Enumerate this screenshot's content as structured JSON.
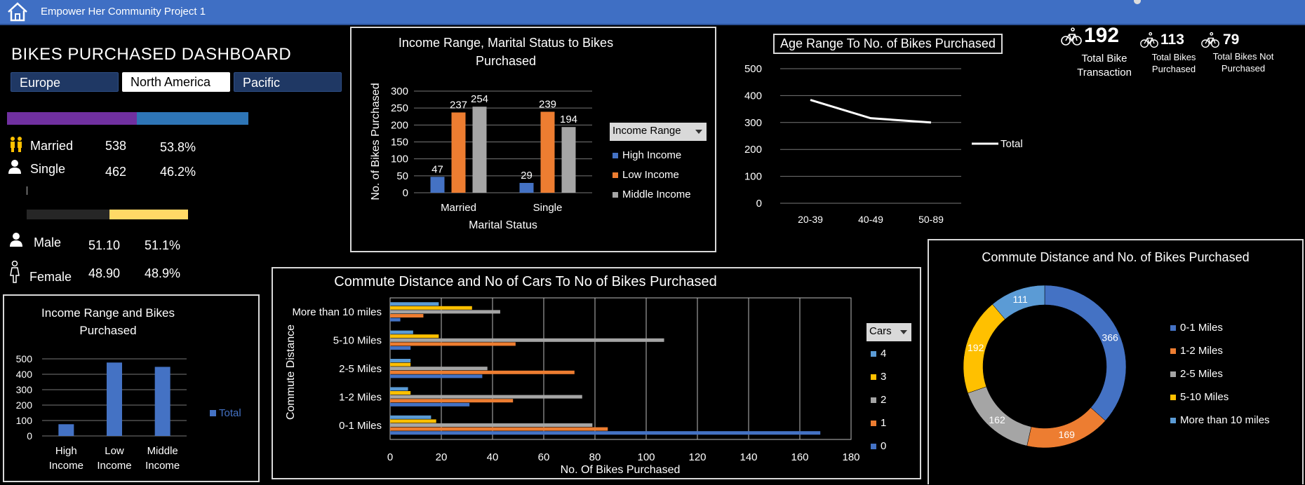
{
  "app": {
    "title": "Empower Her Community Project 1"
  },
  "dashboard": {
    "title": "BIKES PURCHASED DASHBOARD",
    "regions": [
      {
        "label": "Europe",
        "selected": false
      },
      {
        "label": "North America",
        "selected": true
      },
      {
        "label": "Pacific",
        "selected": false
      }
    ]
  },
  "marital": {
    "married_label": "Married",
    "married_count": "538",
    "married_pct": "53.8%",
    "single_label": "Single",
    "single_count": "462",
    "single_pct": "46.2%",
    "married_share": 0.538,
    "colors": {
      "married": "#7030a0",
      "single": "#2e75b6"
    }
  },
  "gender": {
    "male_label": "Male",
    "male_value": "51.10",
    "male_pct": "51.1%",
    "female_label": "Female",
    "female_value": "48.90",
    "female_pct": "48.9%",
    "male_share": 0.511,
    "colors": {
      "male": "#262626",
      "female": "#ffd966"
    }
  },
  "kpis": {
    "total_transactions": "192",
    "total_transactions_label_1": "Total Bike",
    "total_transactions_label_2": "Transaction",
    "total_purchased": "113",
    "total_purchased_label_1": "Total Bikes",
    "total_purchased_label_2": "Purchased",
    "total_not_purchased": "79",
    "total_not_purchased_label_1": "Total Bikes Not",
    "total_not_purchased_label_2": "Purchased"
  },
  "filters": {
    "income_range": "Income Range",
    "cars": "Cars"
  },
  "chart_data": [
    {
      "id": "income_marital",
      "type": "bar",
      "title": "Income Range, Marital Status to Bikes Purchased",
      "title_line1": "Income Range, Marital Status to Bikes",
      "title_line2": "Purchased",
      "xlabel": "Marital Status",
      "ylabel": "No. of Bikes Purchased",
      "categories": [
        "Married",
        "Single"
      ],
      "ylim": [
        0,
        300
      ],
      "yticks": [
        0,
        50,
        100,
        150,
        200,
        250,
        300
      ],
      "series": [
        {
          "name": "High Income",
          "values": [
            47,
            29
          ],
          "color": "#4472c4"
        },
        {
          "name": "Low Income",
          "values": [
            237,
            239
          ],
          "color": "#ed7d31"
        },
        {
          "name": "Middle Income",
          "values": [
            254,
            194
          ],
          "color": "#a5a5a5"
        }
      ],
      "grid": true,
      "legend": "right"
    },
    {
      "id": "age_range",
      "type": "line",
      "title": "Age Range To No. of Bikes Purchased",
      "categories": [
        "20-39",
        "40-49",
        "50-89"
      ],
      "ylim": [
        0,
        500
      ],
      "yticks": [
        0,
        100,
        200,
        300,
        400,
        500
      ],
      "series": [
        {
          "name": "Total",
          "values": [
            384,
            316,
            300
          ],
          "color": "#ffffff"
        }
      ],
      "grid": true,
      "legend": "right"
    },
    {
      "id": "income_bikes",
      "type": "bar",
      "title": "Income Range and Bikes Purchased",
      "title_line1": "Income Range and Bikes",
      "title_line2": "Purchased",
      "categories": [
        "High Income",
        "Low Income",
        "Middle Income"
      ],
      "category_lines": [
        [
          "High",
          "Income"
        ],
        [
          "Low",
          "Income"
        ],
        [
          "Middle",
          "Income"
        ]
      ],
      "ylim": [
        0,
        500
      ],
      "yticks": [
        0,
        100,
        200,
        300,
        400,
        500
      ],
      "series": [
        {
          "name": "Total",
          "values": [
            76,
            476,
            448
          ],
          "color": "#4472c4"
        }
      ],
      "grid": true,
      "legend": "right"
    },
    {
      "id": "commute_cars",
      "type": "bar",
      "orientation": "horizontal",
      "title": "Commute Distance and No of Cars To No of Bikes Purchased",
      "xlabel": "No. Of Bikes Purchased",
      "ylabel": "Commute Distance",
      "categories": [
        "0-1 Miles",
        "1-2 Miles",
        "2-5 Miles",
        "5-10 Miles",
        "More than 10 miles"
      ],
      "xlim": [
        0,
        180
      ],
      "xticks": [
        0,
        20,
        40,
        60,
        80,
        100,
        120,
        140,
        160,
        180
      ],
      "series": [
        {
          "name": "0",
          "values": [
            168,
            31,
            36,
            8,
            4
          ],
          "color": "#4472c4"
        },
        {
          "name": "1",
          "values": [
            85,
            48,
            72,
            49,
            13
          ],
          "color": "#ed7d31"
        },
        {
          "name": "2",
          "values": [
            79,
            75,
            38,
            107,
            43
          ],
          "color": "#a5a5a5"
        },
        {
          "name": "3",
          "values": [
            18,
            8,
            8,
            19,
            32
          ],
          "color": "#ffc000"
        },
        {
          "name": "4",
          "values": [
            16,
            7,
            8,
            9,
            19
          ],
          "color": "#5b9bd5"
        }
      ],
      "legend_order": [
        "4",
        "3",
        "2",
        "1",
        "0"
      ],
      "grid": true,
      "legend": "right"
    },
    {
      "id": "commute_donut",
      "type": "pie",
      "variant": "donut",
      "title": "Commute Distance and No. of Bikes Purchased",
      "categories": [
        "0-1 Miles",
        "1-2 Miles",
        "2-5 Miles",
        "5-10 Miles",
        "More than 10 miles"
      ],
      "values": [
        366,
        169,
        162,
        192,
        111
      ],
      "colors": [
        "#4472c4",
        "#ed7d31",
        "#a5a5a5",
        "#ffc000",
        "#5b9bd5"
      ],
      "legend": "right"
    }
  ]
}
